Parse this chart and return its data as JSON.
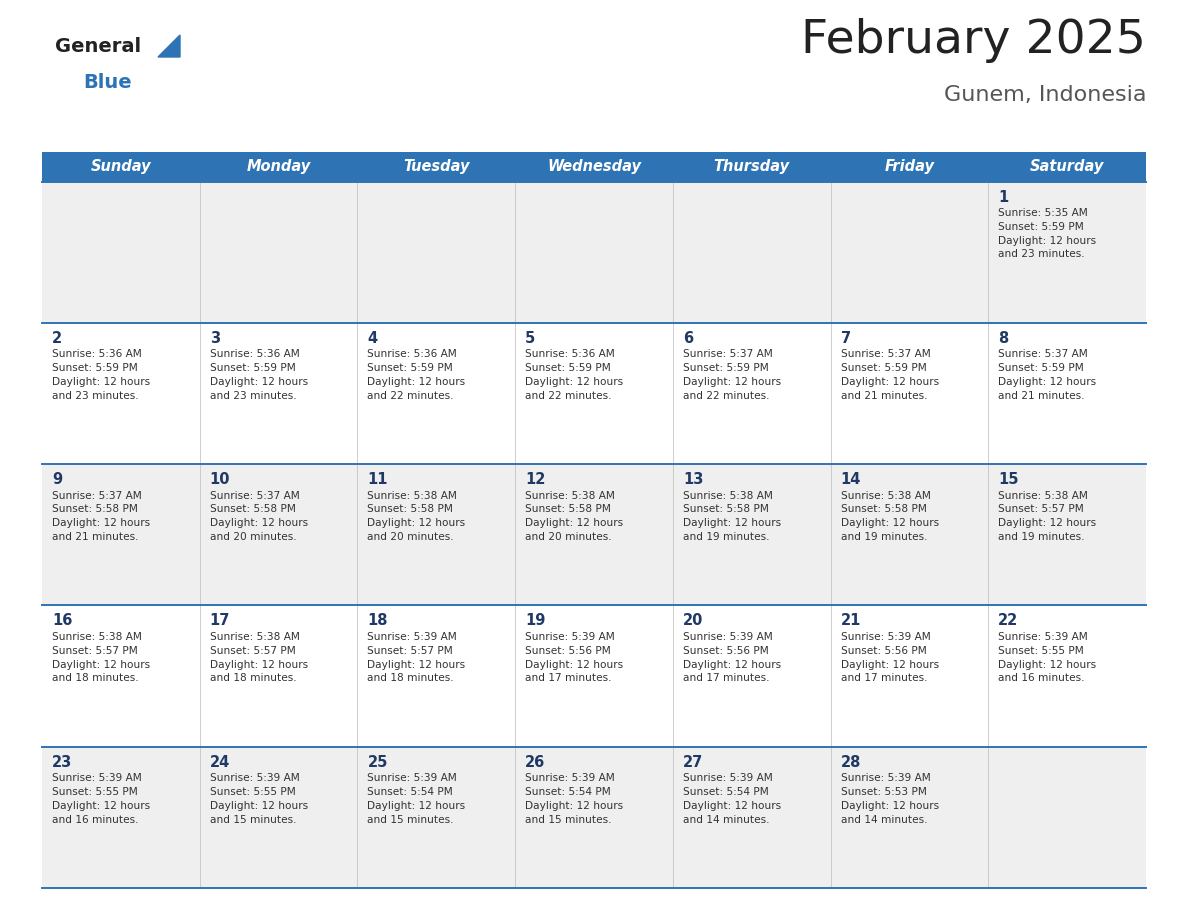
{
  "title": "February 2025",
  "subtitle": "Gunem, Indonesia",
  "header_bg": "#2E74B5",
  "header_text_color": "#FFFFFF",
  "cell_bg_light": "#EFEFEF",
  "cell_bg_white": "#FFFFFF",
  "day_headers": [
    "Sunday",
    "Monday",
    "Tuesday",
    "Wednesday",
    "Thursday",
    "Friday",
    "Saturday"
  ],
  "title_color": "#222222",
  "subtitle_color": "#555555",
  "day_number_color": "#1F3864",
  "info_color": "#333333",
  "divider_color": "#2E74B5",
  "logo_general_color": "#222222",
  "logo_blue_color": "#2E74B5",
  "calendar_data": [
    [
      null,
      null,
      null,
      null,
      null,
      null,
      {
        "day": 1,
        "sunrise": "5:35 AM",
        "sunset": "5:59 PM",
        "daylight": "12 hours",
        "daylight2": "and 23 minutes."
      }
    ],
    [
      {
        "day": 2,
        "sunrise": "5:36 AM",
        "sunset": "5:59 PM",
        "daylight": "12 hours",
        "daylight2": "and 23 minutes."
      },
      {
        "day": 3,
        "sunrise": "5:36 AM",
        "sunset": "5:59 PM",
        "daylight": "12 hours",
        "daylight2": "and 23 minutes."
      },
      {
        "day": 4,
        "sunrise": "5:36 AM",
        "sunset": "5:59 PM",
        "daylight": "12 hours",
        "daylight2": "and 22 minutes."
      },
      {
        "day": 5,
        "sunrise": "5:36 AM",
        "sunset": "5:59 PM",
        "daylight": "12 hours",
        "daylight2": "and 22 minutes."
      },
      {
        "day": 6,
        "sunrise": "5:37 AM",
        "sunset": "5:59 PM",
        "daylight": "12 hours",
        "daylight2": "and 22 minutes."
      },
      {
        "day": 7,
        "sunrise": "5:37 AM",
        "sunset": "5:59 PM",
        "daylight": "12 hours",
        "daylight2": "and 21 minutes."
      },
      {
        "day": 8,
        "sunrise": "5:37 AM",
        "sunset": "5:59 PM",
        "daylight": "12 hours",
        "daylight2": "and 21 minutes."
      }
    ],
    [
      {
        "day": 9,
        "sunrise": "5:37 AM",
        "sunset": "5:58 PM",
        "daylight": "12 hours",
        "daylight2": "and 21 minutes."
      },
      {
        "day": 10,
        "sunrise": "5:37 AM",
        "sunset": "5:58 PM",
        "daylight": "12 hours",
        "daylight2": "and 20 minutes."
      },
      {
        "day": 11,
        "sunrise": "5:38 AM",
        "sunset": "5:58 PM",
        "daylight": "12 hours",
        "daylight2": "and 20 minutes."
      },
      {
        "day": 12,
        "sunrise": "5:38 AM",
        "sunset": "5:58 PM",
        "daylight": "12 hours",
        "daylight2": "and 20 minutes."
      },
      {
        "day": 13,
        "sunrise": "5:38 AM",
        "sunset": "5:58 PM",
        "daylight": "12 hours",
        "daylight2": "and 19 minutes."
      },
      {
        "day": 14,
        "sunrise": "5:38 AM",
        "sunset": "5:58 PM",
        "daylight": "12 hours",
        "daylight2": "and 19 minutes."
      },
      {
        "day": 15,
        "sunrise": "5:38 AM",
        "sunset": "5:57 PM",
        "daylight": "12 hours",
        "daylight2": "and 19 minutes."
      }
    ],
    [
      {
        "day": 16,
        "sunrise": "5:38 AM",
        "sunset": "5:57 PM",
        "daylight": "12 hours",
        "daylight2": "and 18 minutes."
      },
      {
        "day": 17,
        "sunrise": "5:38 AM",
        "sunset": "5:57 PM",
        "daylight": "12 hours",
        "daylight2": "and 18 minutes."
      },
      {
        "day": 18,
        "sunrise": "5:39 AM",
        "sunset": "5:57 PM",
        "daylight": "12 hours",
        "daylight2": "and 18 minutes."
      },
      {
        "day": 19,
        "sunrise": "5:39 AM",
        "sunset": "5:56 PM",
        "daylight": "12 hours",
        "daylight2": "and 17 minutes."
      },
      {
        "day": 20,
        "sunrise": "5:39 AM",
        "sunset": "5:56 PM",
        "daylight": "12 hours",
        "daylight2": "and 17 minutes."
      },
      {
        "day": 21,
        "sunrise": "5:39 AM",
        "sunset": "5:56 PM",
        "daylight": "12 hours",
        "daylight2": "and 17 minutes."
      },
      {
        "day": 22,
        "sunrise": "5:39 AM",
        "sunset": "5:55 PM",
        "daylight": "12 hours",
        "daylight2": "and 16 minutes."
      }
    ],
    [
      {
        "day": 23,
        "sunrise": "5:39 AM",
        "sunset": "5:55 PM",
        "daylight": "12 hours",
        "daylight2": "and 16 minutes."
      },
      {
        "day": 24,
        "sunrise": "5:39 AM",
        "sunset": "5:55 PM",
        "daylight": "12 hours",
        "daylight2": "and 15 minutes."
      },
      {
        "day": 25,
        "sunrise": "5:39 AM",
        "sunset": "5:54 PM",
        "daylight": "12 hours",
        "daylight2": "and 15 minutes."
      },
      {
        "day": 26,
        "sunrise": "5:39 AM",
        "sunset": "5:54 PM",
        "daylight": "12 hours",
        "daylight2": "and 15 minutes."
      },
      {
        "day": 27,
        "sunrise": "5:39 AM",
        "sunset": "5:54 PM",
        "daylight": "12 hours",
        "daylight2": "and 14 minutes."
      },
      {
        "day": 28,
        "sunrise": "5:39 AM",
        "sunset": "5:53 PM",
        "daylight": "12 hours",
        "daylight2": "and 14 minutes."
      },
      null
    ]
  ]
}
